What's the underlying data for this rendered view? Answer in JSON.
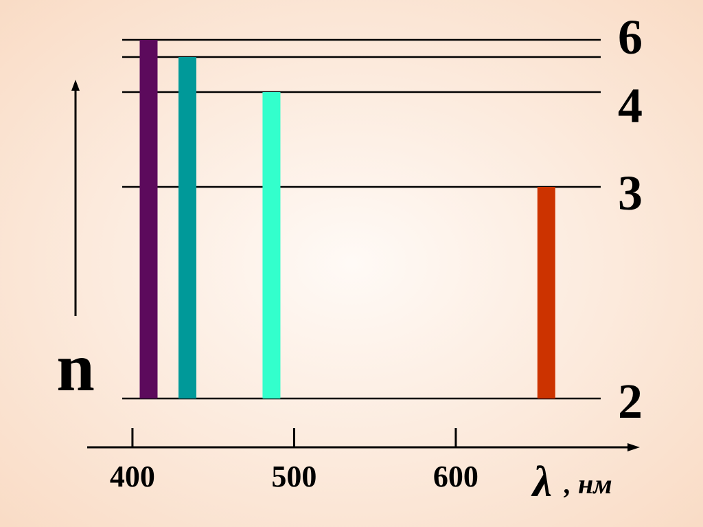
{
  "axis": {
    "xlim": [
      372,
      713
    ],
    "xticks": [
      400,
      500,
      600
    ],
    "symbol": "λ",
    "unit": ", нм"
  },
  "n_label": "n",
  "level_labels": [
    "2",
    "3",
    "4",
    null,
    "6"
  ],
  "transitions": [
    {
      "wavelength": 410,
      "color": "#5c0a5c"
    },
    {
      "wavelength": 434,
      "color": "#009999"
    },
    {
      "wavelength": 486,
      "color": "#33ffcc"
    },
    {
      "wavelength": 656,
      "color": "#cc3300"
    }
  ]
}
